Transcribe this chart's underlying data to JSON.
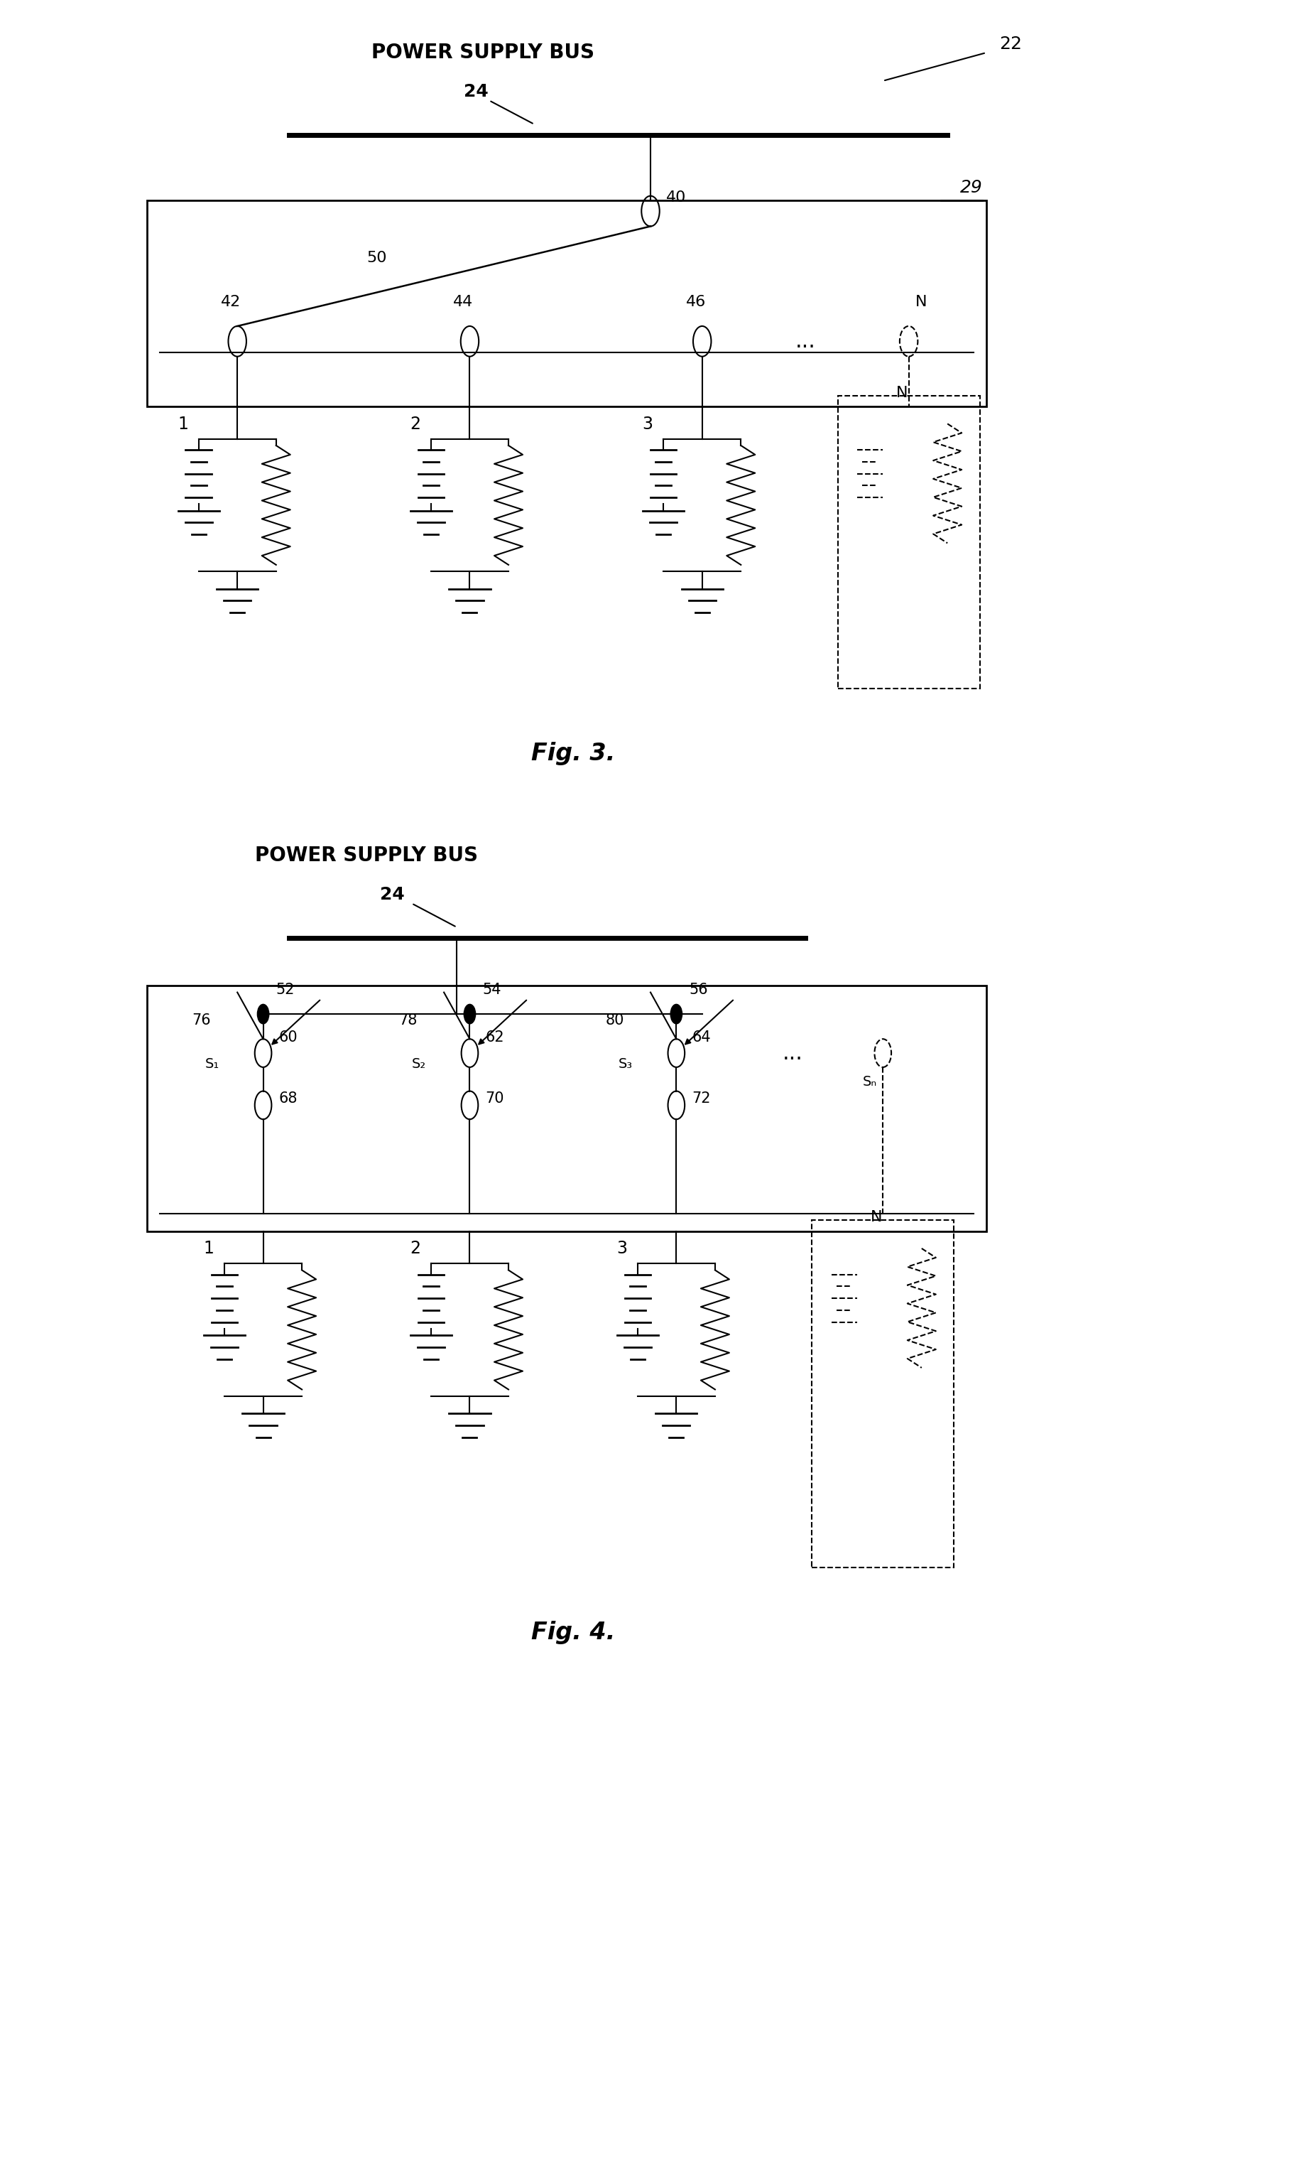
{
  "fig_width": 18.32,
  "fig_height": 30.68,
  "bg_color": "#ffffff",
  "line_color": "#000000",
  "fig3_title": "Fig. 3.",
  "fig4_title": "Fig. 4.",
  "label_22": "22",
  "label_24_fig3": "24",
  "label_29": "29",
  "label_40": "40",
  "label_42": "42",
  "label_44": "44",
  "label_46": "46",
  "label_50": "50",
  "label_N": "N",
  "label_dots": "...",
  "label_bus_fig3": "POWER SUPPLY BUS",
  "label_bus_fig4": "POWER SUPPLY BUS",
  "label_24_fig4": "24",
  "label_52": "52",
  "label_54": "54",
  "label_56": "56",
  "label_60": "60",
  "label_62": "62",
  "label_64": "64",
  "label_68": "68",
  "label_70": "70",
  "label_72": "72",
  "label_76": "76",
  "label_78": "78",
  "label_80": "80",
  "label_S1": "S₁",
  "label_S2": "S₂",
  "label_S3": "S₃",
  "label_SN": "Sₙ"
}
